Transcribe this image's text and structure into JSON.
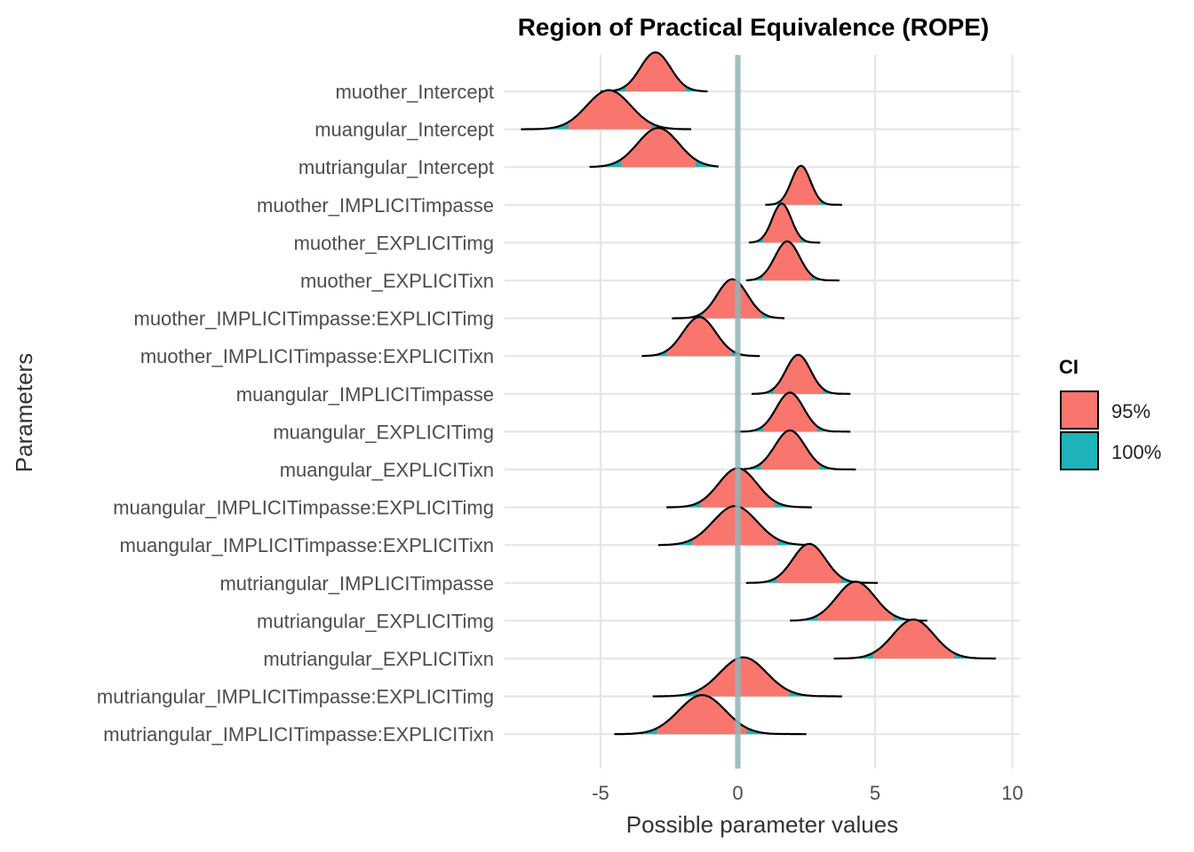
{
  "chart_data": {
    "type": "ridgeline",
    "title": "Region of Practical Equivalence (ROPE)",
    "xlabel": "Possible parameter values",
    "ylabel": "Parameters",
    "xlim": [
      -8.5,
      10.5
    ],
    "xticks": [
      -5,
      0,
      5,
      10
    ],
    "rope": [
      -0.1,
      0.1
    ],
    "grid": true,
    "legend": {
      "title": "CI",
      "position": "right",
      "entries": [
        {
          "label": "95%",
          "color": "#F8766D"
        },
        {
          "label": "100%",
          "color": "#00BFC4"
        }
      ]
    },
    "colors": {
      "ci95": "#F8766D",
      "ci100": "#1DB3B8",
      "rope": "#8FB6BA",
      "line": "#000000",
      "grid": "#E6E6E6"
    },
    "parameters": [
      {
        "name": "muother_Intercept",
        "mean": -3.0,
        "sd": 0.55,
        "min": -5.0,
        "max": -1.1,
        "ci95": [
          -4.1,
          -1.9
        ]
      },
      {
        "name": "muangular_Intercept",
        "mean": -4.7,
        "sd": 0.8,
        "min": -7.9,
        "max": -1.7,
        "ci95": [
          -6.2,
          -3.1
        ]
      },
      {
        "name": "mutriangular_Intercept",
        "mean": -2.9,
        "sd": 0.75,
        "min": -5.4,
        "max": -0.7,
        "ci95": [
          -4.3,
          -1.5
        ]
      },
      {
        "name": "muother_IMPLICITimpasse",
        "mean": 2.3,
        "sd": 0.35,
        "min": 1.0,
        "max": 3.8,
        "ci95": [
          1.6,
          3.0
        ]
      },
      {
        "name": "muother_EXPLICITimg",
        "mean": 1.6,
        "sd": 0.35,
        "min": 0.4,
        "max": 3.0,
        "ci95": [
          0.9,
          2.3
        ]
      },
      {
        "name": "muother_EXPLICITixn",
        "mean": 1.8,
        "sd": 0.45,
        "min": 0.3,
        "max": 3.7,
        "ci95": [
          0.9,
          2.7
        ]
      },
      {
        "name": "muother_IMPLICITimpasse:EXPLICITimg",
        "mean": -0.2,
        "sd": 0.55,
        "min": -2.4,
        "max": 1.7,
        "ci95": [
          -1.3,
          0.9
        ]
      },
      {
        "name": "muother_IMPLICITimpasse:EXPLICITixn",
        "mean": -1.4,
        "sd": 0.6,
        "min": -3.5,
        "max": 0.8,
        "ci95": [
          -2.6,
          -0.2
        ]
      },
      {
        "name": "muangular_IMPLICITimpasse",
        "mean": 2.2,
        "sd": 0.45,
        "min": 0.5,
        "max": 4.1,
        "ci95": [
          1.3,
          3.1
        ]
      },
      {
        "name": "muangular_EXPLICITimg",
        "mean": 1.9,
        "sd": 0.5,
        "min": -0.1,
        "max": 4.1,
        "ci95": [
          0.9,
          2.9
        ]
      },
      {
        "name": "muangular_EXPLICITixn",
        "mean": 1.9,
        "sd": 0.55,
        "min": 0.2,
        "max": 4.3,
        "ci95": [
          0.8,
          3.0
        ]
      },
      {
        "name": "muangular_IMPLICITimpasse:EXPLICITimg",
        "mean": 0.0,
        "sd": 0.7,
        "min": -2.6,
        "max": 2.7,
        "ci95": [
          -1.4,
          1.4
        ]
      },
      {
        "name": "muangular_IMPLICITimpasse:EXPLICITixn",
        "mean": -0.1,
        "sd": 0.8,
        "min": -2.9,
        "max": 2.7,
        "ci95": [
          -1.7,
          1.5
        ]
      },
      {
        "name": "mutriangular_IMPLICITimpasse",
        "mean": 2.6,
        "sd": 0.6,
        "min": 0.3,
        "max": 5.1,
        "ci95": [
          1.4,
          3.8
        ]
      },
      {
        "name": "mutriangular_EXPLICITimg",
        "mean": 4.3,
        "sd": 0.7,
        "min": 1.9,
        "max": 6.9,
        "ci95": [
          2.9,
          5.7
        ]
      },
      {
        "name": "mutriangular_EXPLICITixn",
        "mean": 6.4,
        "sd": 0.75,
        "min": 3.5,
        "max": 9.4,
        "ci95": [
          4.9,
          7.9
        ]
      },
      {
        "name": "mutriangular_IMPLICITimpasse:EXPLICITimg",
        "mean": 0.2,
        "sd": 0.85,
        "min": -3.1,
        "max": 3.8,
        "ci95": [
          -1.5,
          1.9
        ]
      },
      {
        "name": "mutriangular_IMPLICITimpasse:EXPLICITixn",
        "mean": -1.3,
        "sd": 0.85,
        "min": -4.5,
        "max": 2.5,
        "ci95": [
          -3.0,
          0.4
        ]
      }
    ]
  }
}
